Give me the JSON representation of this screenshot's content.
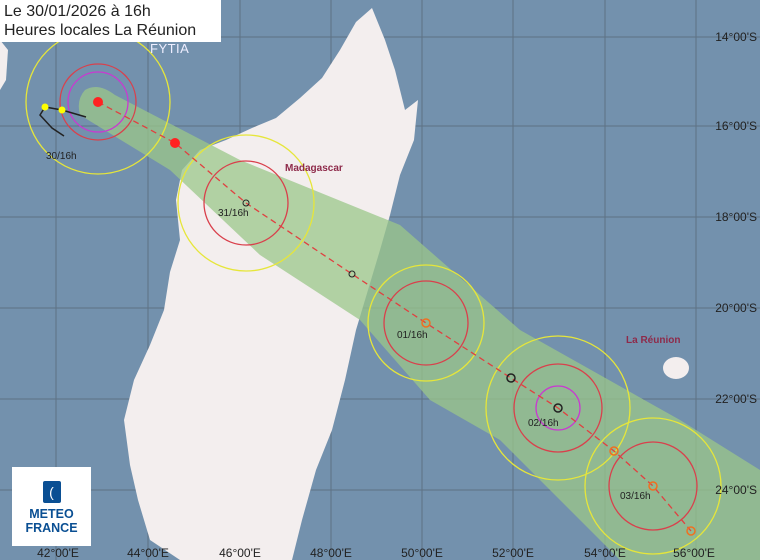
{
  "header": {
    "line1": "Le 30/01/2026 à 16h",
    "line2": "Heures locales La Réunion"
  },
  "storm_name": "FYTIA",
  "logo": {
    "line1": "METEO",
    "line2": "FRANCE"
  },
  "places": {
    "madagascar": "Madagascar",
    "reunion": "La Réunion"
  },
  "longitude_labels": [
    "42°00'E",
    "44°00'E",
    "46°00'E",
    "48°00'E",
    "50°00'E",
    "52°00'E",
    "54°00'E",
    "56°00'E"
  ],
  "latitude_labels": [
    "14°00'S",
    "16°00'S",
    "18°00'S",
    "20°00'S",
    "22°00'S",
    "24°00'S"
  ],
  "time_labels": [
    "30/16h",
    "31/16h",
    "01/16h",
    "02/16h",
    "03/16h"
  ],
  "colors": {
    "ocean": "#7391ad",
    "land": "#f3eeee",
    "cone": "#9bc78a",
    "wind34": "#e6e63a",
    "wind48": "#d9404c",
    "wind64": "#c83ad0",
    "track": "#e04040"
  }
}
